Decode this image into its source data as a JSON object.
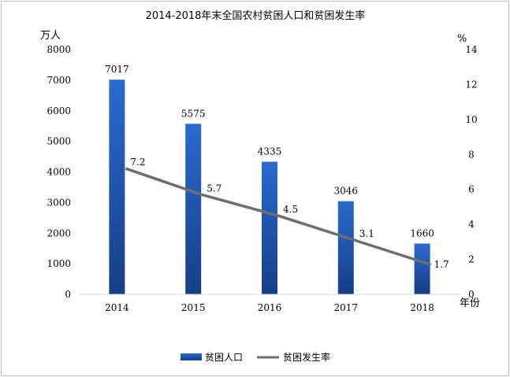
{
  "chart_data": {
    "type": "bar+line",
    "title": "2014-2018年末全国农村贫困人口和贫困发生率",
    "categories": [
      "2014",
      "2015",
      "2016",
      "2017",
      "2018"
    ],
    "x_unit": "年份",
    "y_left": {
      "unit": "万人",
      "range": [
        0,
        8000
      ],
      "ticks": [
        "0",
        "1000",
        "2000",
        "3000",
        "4000",
        "5000",
        "6000",
        "7000",
        "8000"
      ]
    },
    "y_right": {
      "unit": "%",
      "range": [
        0,
        14
      ],
      "ticks": [
        "0",
        "2",
        "4",
        "6",
        "8",
        "10",
        "12",
        "14"
      ]
    },
    "series": [
      {
        "name": "贫困人口",
        "type": "bar",
        "axis": "left",
        "values": [
          7017,
          5575,
          4335,
          3046,
          1660
        ],
        "labels": [
          "7017",
          "5575",
          "4335",
          "3046",
          "1660"
        ],
        "color": "#1f56a8"
      },
      {
        "name": "贫困发生率",
        "type": "line",
        "axis": "right",
        "values": [
          7.2,
          5.7,
          4.5,
          3.1,
          1.7
        ],
        "labels": [
          "7.2",
          "5.7",
          "4.5",
          "3.1",
          "1.7"
        ],
        "color": "#6e6e6e"
      }
    ],
    "grid": false,
    "legend": "bottom"
  }
}
